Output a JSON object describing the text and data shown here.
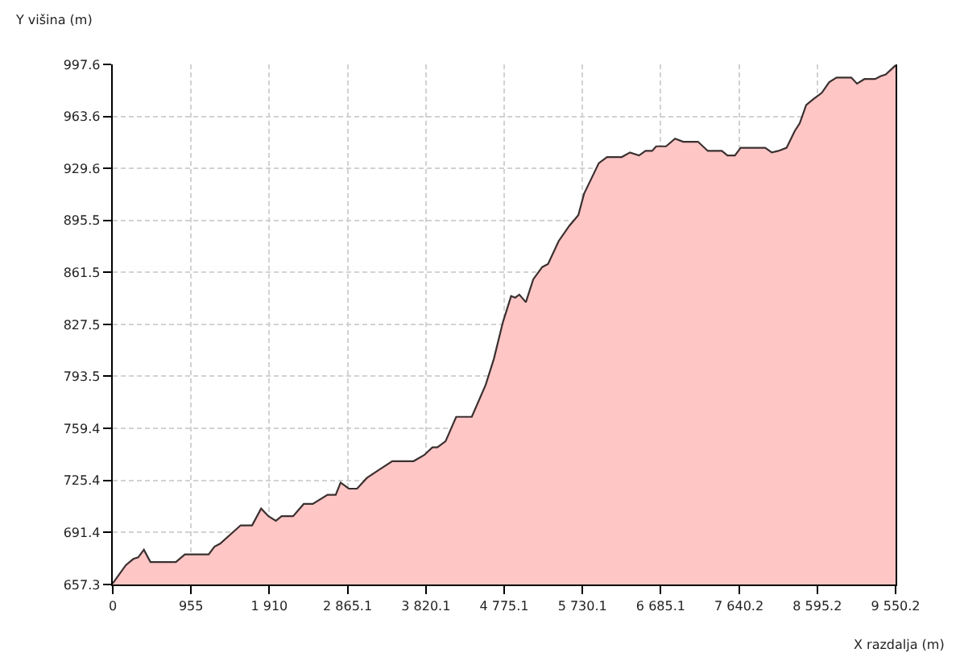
{
  "chart_data": {
    "type": "area",
    "xlabel": "X razdalja (m)",
    "ylabel": "Y višina (m)",
    "x": [
      0,
      160,
      250,
      310,
      380,
      460,
      770,
      880,
      1170,
      1240,
      1310,
      1560,
      1700,
      1810,
      1900,
      1990,
      2060,
      2200,
      2330,
      2440,
      2620,
      2720,
      2780,
      2880,
      2980,
      3100,
      3240,
      3410,
      3670,
      3800,
      3900,
      3960,
      4060,
      4190,
      4380,
      4550,
      4650,
      4760,
      4860,
      4910,
      4960,
      5040,
      5130,
      5240,
      5310,
      5440,
      5570,
      5680,
      5750,
      5840,
      5930,
      6030,
      6210,
      6310,
      6420,
      6500,
      6580,
      6630,
      6750,
      6860,
      6960,
      7140,
      7260,
      7430,
      7500,
      7590,
      7660,
      7960,
      8040,
      8120,
      8220,
      8320,
      8380,
      8460,
      8550,
      8650,
      8740,
      8830,
      9010,
      9080,
      9170,
      9300,
      9370,
      9430,
      9550.2
    ],
    "series": [
      {
        "color": "#ffc6c6",
        "values": [
          658,
          670,
          674,
          675,
          680,
          672,
          672,
          677,
          677,
          682,
          684,
          696,
          696,
          707,
          702,
          699,
          702,
          702,
          710,
          710,
          716,
          716,
          724,
          720,
          720,
          727,
          732,
          738,
          738,
          742,
          747,
          747,
          751,
          767,
          767,
          788,
          805,
          829,
          846,
          845,
          847,
          842,
          857,
          865,
          867,
          882,
          892,
          899,
          913,
          923,
          933,
          937,
          937,
          940,
          938,
          941,
          941,
          944,
          944,
          949,
          947,
          947,
          941,
          941,
          938,
          938,
          943,
          943,
          940,
          941,
          943,
          954,
          959,
          971,
          975,
          979,
          986,
          989,
          989,
          985,
          988,
          988,
          990,
          991,
          997
        ]
      }
    ],
    "xlim": [
      0,
      9550.2
    ],
    "xticks": [
      0,
      955,
      {
        "value": 1910,
        "label": "1 910"
      },
      {
        "value": 2865.1,
        "label": "2 865.1"
      },
      {
        "value": 3820.1,
        "label": "3 820.1"
      },
      {
        "value": 4775.1,
        "label": "4 775.1"
      },
      {
        "value": 5730.1,
        "label": "5 730.1"
      },
      {
        "value": 6685.1,
        "label": "6 685.1"
      },
      {
        "value": 7640.2,
        "label": "7 640.2"
      },
      {
        "value": 8595.2,
        "label": "8 595.2"
      },
      {
        "value": 9550.2,
        "label": "9 550.2"
      }
    ],
    "ylim": [
      657.3,
      997.6
    ],
    "yticks": [
      657.3,
      691.4,
      725.4,
      759.4,
      793.5,
      827.5,
      861.5,
      895.5,
      929.6,
      963.6,
      997.6
    ],
    "grid": true,
    "marker": "none",
    "line_style": "solid"
  }
}
